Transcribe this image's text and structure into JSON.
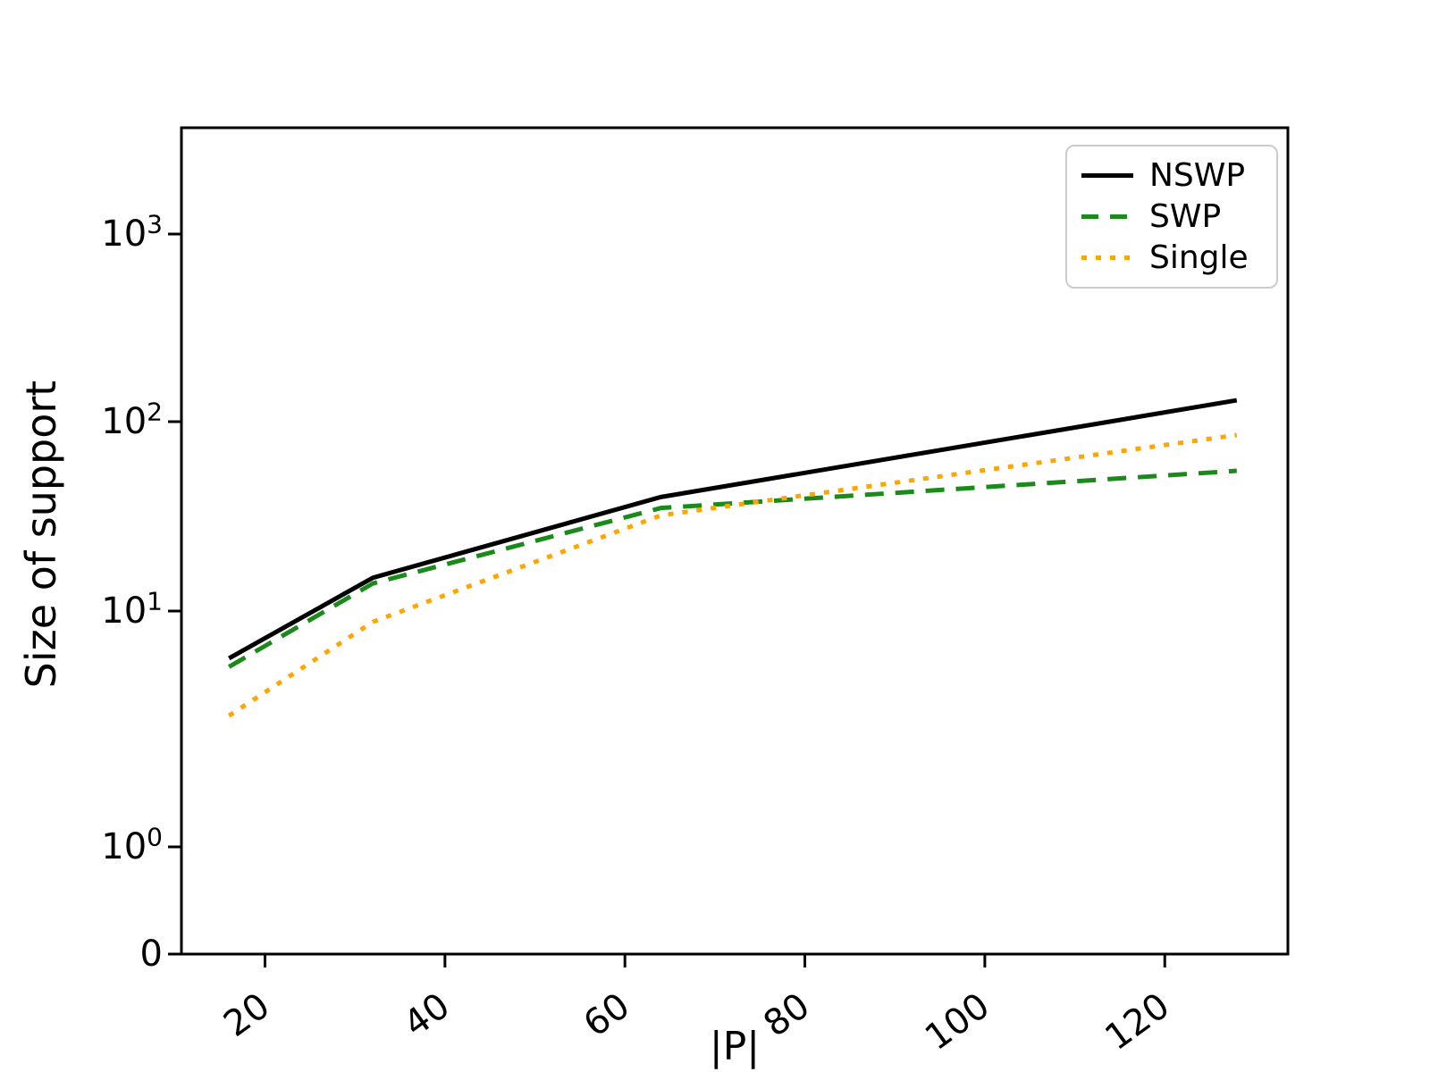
{
  "chart_data": {
    "type": "line",
    "title": "",
    "xlabel": "|P|",
    "ylabel": "Size of support",
    "yscale": "symlog",
    "grid": false,
    "legend_position": "upper right",
    "x": [
      16,
      32,
      64,
      128
    ],
    "series": [
      {
        "name": "NSWP",
        "color": "#000000",
        "style": "solid",
        "values": [
          6.3,
          15,
          40,
          130
        ]
      },
      {
        "name": "SWP",
        "color": "#1a8a1a",
        "style": "dashed",
        "values": [
          5.8,
          14,
          35,
          55
        ]
      },
      {
        "name": "Single",
        "color": "#ffa500",
        "style": "dotted",
        "values": [
          3.6,
          9,
          32,
          85
        ]
      }
    ],
    "xticks": [
      "20",
      "40",
      "60",
      "80",
      "100",
      "120"
    ],
    "yticks": [
      {
        "base": "10",
        "exp": "3",
        "value": 1000
      },
      {
        "base": "10",
        "exp": "2",
        "value": 100
      },
      {
        "base": "10",
        "exp": "1",
        "value": 10
      },
      {
        "base": "10",
        "exp": "0",
        "value": 1
      },
      {
        "base": "0",
        "exp": "",
        "value": 0
      }
    ],
    "xlim": [
      12.5,
      133.5
    ],
    "ylim": [
      0,
      3600
    ]
  }
}
